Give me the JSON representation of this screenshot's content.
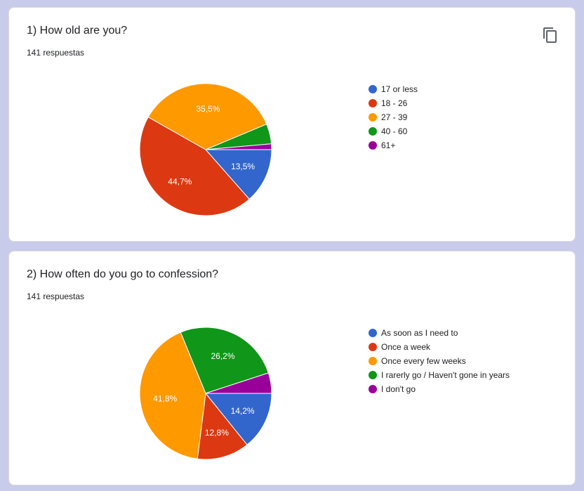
{
  "questions": [
    {
      "title": "1) How old are you?",
      "responses": "141 respuestas",
      "icon": "copy-icon"
    },
    {
      "title": "2) How often do you go to confession?",
      "responses": "141 respuestas",
      "icon": "copy-icon"
    }
  ],
  "chart_data": [
    {
      "type": "pie",
      "title": "1) How old are you?",
      "categories": [
        "17 or less",
        "18 - 26",
        "27 - 39",
        "40 - 60",
        "61+"
      ],
      "values": [
        13.5,
        44.7,
        35.5,
        4.9,
        1.4
      ],
      "labels": [
        "13,5%",
        "44,7%",
        "35,5%",
        "",
        ""
      ],
      "colors": [
        "#3366cc",
        "#dc3912",
        "#ff9900",
        "#109618",
        "#990099"
      ],
      "legend": "right"
    },
    {
      "type": "pie",
      "title": "2) How often do you go to confession?",
      "categories": [
        "As soon as I need to",
        "Once a week",
        "Once every few weeks",
        "I rarerly go / Haven't gone in years",
        "I don't go"
      ],
      "values": [
        14.2,
        12.8,
        41.8,
        26.2,
        5.0
      ],
      "labels": [
        "14,2%",
        "12,8%",
        "41,8%",
        "26,2%",
        ""
      ],
      "colors": [
        "#3366cc",
        "#dc3912",
        "#ff9900",
        "#109618",
        "#990099"
      ],
      "legend": "right"
    }
  ]
}
